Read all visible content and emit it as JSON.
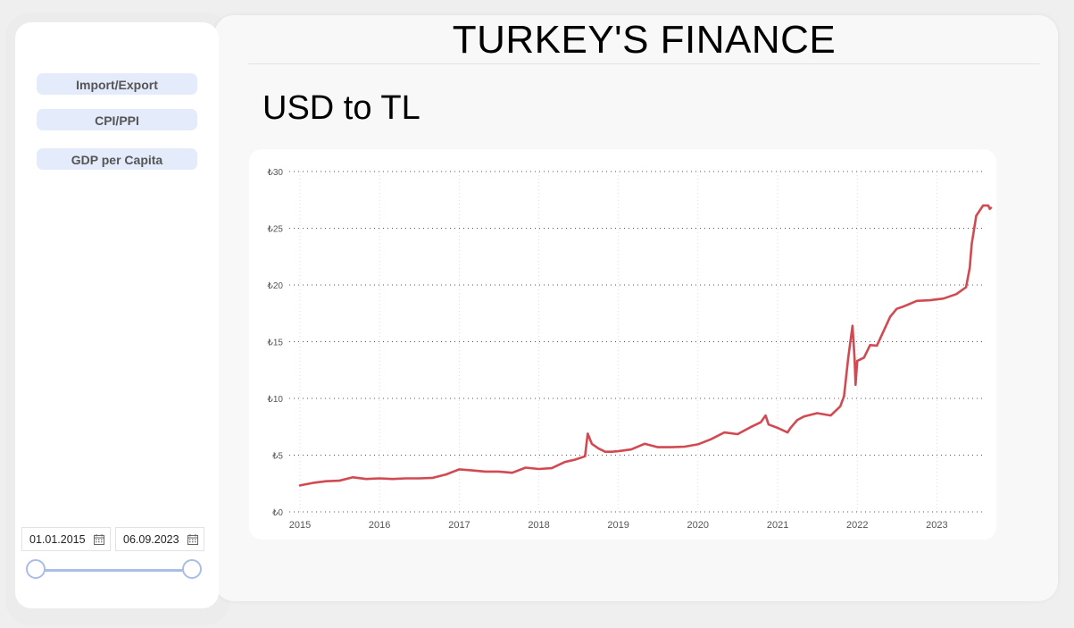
{
  "header": {
    "title": "TURKEY'S FINANCE"
  },
  "sidebar": {
    "nav_items": [
      {
        "label": "Import/Export"
      },
      {
        "label": "CPI/PPI"
      },
      {
        "label": "GDP per Capita"
      }
    ],
    "date_range": {
      "start": "01.01.2015",
      "end": "06.09.2023",
      "calendar_icon": "calendar-icon"
    }
  },
  "colors": {
    "accent": "#a9bde6",
    "button_bg": "#e4ecfc",
    "series_line": "#d14a52"
  },
  "chart_data": {
    "type": "line",
    "title": "USD to TL",
    "xlabel": "",
    "ylabel": "",
    "x_ticks": [
      "2015",
      "2016",
      "2017",
      "2018",
      "2019",
      "2020",
      "2021",
      "2022",
      "2023"
    ],
    "y_ticks": [
      "₺0",
      "₺5",
      "₺10",
      "₺15",
      "₺20",
      "₺25",
      "₺30"
    ],
    "ylim": [
      0,
      30
    ],
    "xlim": [
      "2015-01-01",
      "2023-09-06"
    ],
    "grid": true,
    "series": [
      {
        "x": [
          "2015-01-01",
          "2015-03-01",
          "2015-05-01",
          "2015-07-01",
          "2015-09-01",
          "2015-11-01",
          "2016-01-01",
          "2016-03-01",
          "2016-05-01",
          "2016-07-01",
          "2016-09-01",
          "2016-11-01",
          "2017-01-01",
          "2017-03-01",
          "2017-05-01",
          "2017-07-01",
          "2017-09-01",
          "2017-11-01",
          "2018-01-01",
          "2018-03-01",
          "2018-05-01",
          "2018-06-15",
          "2018-08-01",
          "2018-08-13",
          "2018-09-01",
          "2018-10-01",
          "2018-11-01",
          "2018-12-01",
          "2019-01-01",
          "2019-03-01",
          "2019-05-01",
          "2019-07-01",
          "2019-09-01",
          "2019-11-01",
          "2020-01-01",
          "2020-03-01",
          "2020-05-01",
          "2020-07-01",
          "2020-09-01",
          "2020-10-15",
          "2020-11-06",
          "2020-11-20",
          "2021-01-01",
          "2021-02-15",
          "2021-03-01",
          "2021-04-01",
          "2021-05-01",
          "2021-07-01",
          "2021-09-01",
          "2021-10-15",
          "2021-11-01",
          "2021-11-20",
          "2021-12-10",
          "2021-12-20",
          "2021-12-24",
          "2022-01-01",
          "2022-02-01",
          "2022-03-01",
          "2022-04-01",
          "2022-05-01",
          "2022-06-01",
          "2022-07-01",
          "2022-08-01",
          "2022-10-01",
          "2022-12-01",
          "2023-02-01",
          "2023-04-01",
          "2023-05-15",
          "2023-06-01",
          "2023-06-10",
          "2023-07-01",
          "2023-08-01",
          "2023-08-25",
          "2023-09-01",
          "2023-09-06"
        ],
        "values": [
          2.33,
          2.55,
          2.7,
          2.75,
          3.05,
          2.9,
          2.95,
          2.9,
          2.95,
          2.95,
          3.0,
          3.3,
          3.75,
          3.65,
          3.55,
          3.55,
          3.45,
          3.9,
          3.78,
          3.85,
          4.4,
          4.6,
          4.9,
          6.9,
          6.0,
          5.6,
          5.3,
          5.3,
          5.35,
          5.5,
          6.0,
          5.7,
          5.7,
          5.75,
          5.95,
          6.4,
          7.0,
          6.85,
          7.5,
          7.9,
          8.5,
          7.7,
          7.4,
          7.0,
          7.4,
          8.1,
          8.4,
          8.7,
          8.5,
          9.3,
          10.2,
          13.5,
          16.4,
          13.4,
          11.2,
          13.3,
          13.6,
          14.7,
          14.65,
          15.9,
          17.2,
          17.9,
          18.1,
          18.6,
          18.65,
          18.8,
          19.2,
          19.8,
          21.5,
          23.6,
          26.1,
          27.0,
          27.0,
          26.7,
          26.8
        ]
      }
    ]
  }
}
